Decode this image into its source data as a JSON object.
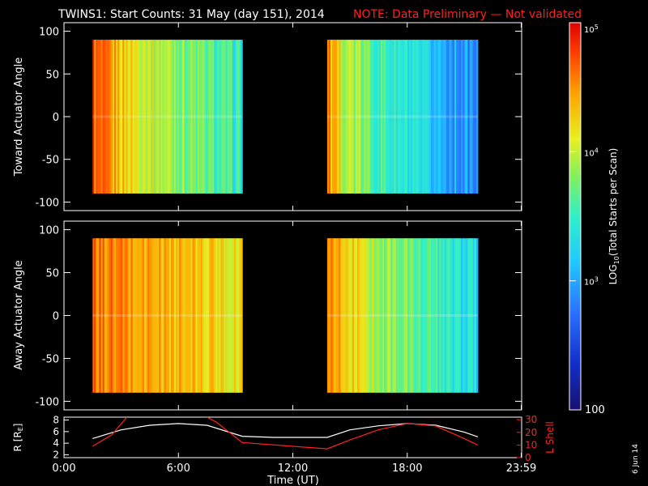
{
  "header": {
    "title": "TWINS1: Start Counts: 31 May (day 151), 2014",
    "note": "NOTE: Data Preliminary — Not validated"
  },
  "colors": {
    "background": "#000000",
    "text": "#ffffff",
    "note": "#ff2020",
    "lshell": "#ff2020",
    "radius": "#ffffff"
  },
  "chart_data": [
    {
      "type": "heatmap",
      "ylabel": "Toward Actuator Angle",
      "xlim": [
        0,
        24
      ],
      "ylim": [
        -110,
        110
      ],
      "y_ticks": [
        -100,
        -50,
        0,
        50,
        100
      ],
      "data_blocks": [
        {
          "x_start": 1.5,
          "x_end": 9.35,
          "y_start": -90,
          "y_end": 90
        },
        {
          "x_start": 13.8,
          "x_end": 21.7,
          "y_start": -90,
          "y_end": 90
        }
      ]
    },
    {
      "type": "heatmap",
      "ylabel": "Away Actuator Angle",
      "xlim": [
        0,
        24
      ],
      "ylim": [
        -110,
        110
      ],
      "y_ticks": [
        -100,
        -50,
        0,
        50,
        100
      ],
      "data_blocks": [
        {
          "x_start": 1.5,
          "x_end": 9.35,
          "y_start": -90,
          "y_end": 90
        },
        {
          "x_start": 13.8,
          "x_end": 21.7,
          "y_start": -90,
          "y_end": 90
        }
      ]
    },
    {
      "type": "line",
      "ylabel_left": "R [R",
      "ylabel_left_sub": "E",
      "ylabel_left_end": "]",
      "ylabel_right": "L Shell",
      "ylim_left": [
        1.5,
        8.5
      ],
      "y_ticks_left": [
        2,
        4,
        6,
        8
      ],
      "ylim_right": [
        0,
        32
      ],
      "y_ticks_right": [
        0,
        10,
        20,
        30
      ],
      "xlabel": "Time (UT)",
      "x_tick_values": [
        0,
        6,
        12,
        18,
        23.98
      ],
      "x_tick_labels": [
        "0:00",
        "6:00",
        "12:00",
        "18:00",
        "23:59"
      ],
      "series": [
        {
          "axis": "left",
          "x": [
            1.5,
            3,
            4.5,
            6,
            7.5,
            9.35,
            11,
            13.8,
            15,
            16.5,
            18,
            19.5,
            21,
            21.7
          ],
          "y": [
            4.8,
            6.3,
            7.1,
            7.4,
            7.1,
            5.2,
            5.0,
            5.0,
            6.3,
            7.0,
            7.4,
            7.1,
            5.9,
            5.1
          ]
        },
        {
          "axis": "right",
          "x": [
            1.5,
            2.5,
            3.3,
            7.5,
            8,
            9.35,
            13.8,
            15,
            16.5,
            18,
            19.5,
            21,
            21.7
          ],
          "y": [
            9,
            18,
            32,
            32,
            28,
            12,
            7,
            14,
            22,
            27,
            25,
            15,
            10
          ]
        }
      ],
      "gap": [
        3.3,
        7.5
      ]
    }
  ],
  "colorbar": {
    "label_prefix": "LOG",
    "label_sub": "10",
    "label_suffix": "(Total Starts per Scan)",
    "min": 100,
    "max": 100000,
    "tick_labels": [
      {
        "value": 1000,
        "base": "10",
        "exp": "3"
      },
      {
        "value": 10000,
        "base": "10",
        "exp": "4"
      },
      {
        "value": 100000,
        "base": "10",
        "exp": "5"
      }
    ],
    "bottom_label": "100"
  },
  "footer": {
    "date_stamp": "6 Jun 14"
  }
}
